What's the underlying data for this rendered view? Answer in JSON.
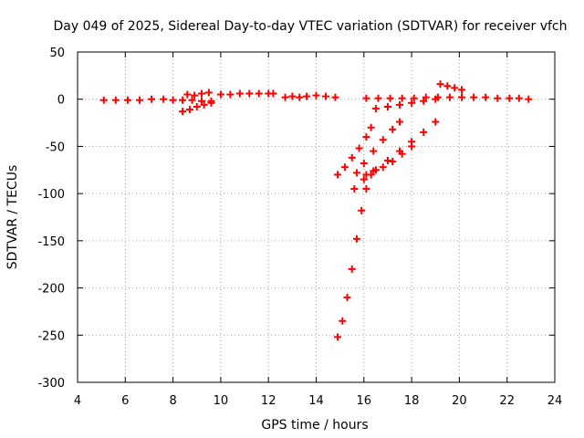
{
  "chart_data": {
    "type": "scatter",
    "title": "Day 049 of 2025, Sidereal Day-to-day VTEC variation (SDTVAR) for receiver vfch",
    "xlabel": "GPS time / hours",
    "ylabel": "SDTVAR / TECUs",
    "xlim": [
      4,
      24
    ],
    "ylim": [
      -300,
      50
    ],
    "xticks": [
      4,
      6,
      8,
      10,
      12,
      14,
      16,
      18,
      20,
      22,
      24
    ],
    "yticks": [
      50,
      0,
      -50,
      -100,
      -150,
      -200,
      -250,
      -300
    ],
    "grid": true,
    "marker": "plus",
    "color": "#ff0000",
    "series": [
      {
        "x": [
          5.1,
          5.6,
          6.1,
          6.6,
          7.1,
          7.6,
          8.0,
          8.4,
          8.8,
          9.2,
          9.6
        ],
        "y": [
          -1,
          -1,
          -1,
          -1,
          0,
          0,
          -1,
          -1,
          -1,
          -2,
          -2
        ]
      },
      {
        "x": [
          8.4,
          8.7,
          9.0,
          9.3,
          9.6
        ],
        "y": [
          -13,
          -11,
          -8,
          -6,
          -4
        ]
      },
      {
        "x": [
          8.6,
          8.9,
          9.2,
          9.5
        ],
        "y": [
          5,
          4,
          6,
          7
        ]
      },
      {
        "x": [
          10.0,
          10.4,
          10.8,
          11.2,
          11.6,
          12.0,
          12.2
        ],
        "y": [
          5,
          5,
          6,
          6,
          6,
          6,
          6
        ]
      },
      {
        "x": [
          12.7,
          13.0,
          13.3,
          13.6,
          14.0,
          14.4,
          14.8
        ],
        "y": [
          2,
          3,
          2,
          3,
          4,
          3,
          2
        ]
      },
      {
        "x": [
          16.1,
          16.6,
          17.1,
          17.6,
          18.1,
          18.6,
          19.1,
          19.6,
          20.1,
          20.6,
          21.1,
          21.6,
          22.1,
          22.5,
          22.9
        ],
        "y": [
          1,
          1,
          1,
          1,
          1,
          2,
          2,
          2,
          2,
          2,
          2,
          1,
          1,
          1,
          0
        ]
      },
      {
        "x": [
          16.5,
          17.0,
          17.5,
          18.0,
          18.5,
          19.0
        ],
        "y": [
          -10,
          -8,
          -6,
          -4,
          -2,
          0
        ]
      },
      {
        "x": [
          19.2,
          19.5,
          19.8,
          20.1
        ],
        "y": [
          16,
          14,
          12,
          10
        ]
      },
      {
        "x": [
          14.9,
          15.1,
          15.3,
          15.5,
          15.7,
          15.9,
          16.1,
          16.3
        ],
        "y": [
          -252,
          -235,
          -210,
          -180,
          -148,
          -118,
          -95,
          -80
        ]
      },
      {
        "x": [
          14.9,
          15.2,
          15.5,
          15.8,
          16.1,
          16.3
        ],
        "y": [
          -80,
          -72,
          -62,
          -52,
          -40,
          -30
        ]
      },
      {
        "x": [
          15.7,
          16.0,
          16.4,
          16.8,
          17.2,
          17.5
        ],
        "y": [
          -78,
          -68,
          -55,
          -43,
          -32,
          -24
        ]
      },
      {
        "x": [
          15.6,
          16.0,
          16.5,
          17.0,
          17.5,
          18.0,
          18.5,
          19.0
        ],
        "y": [
          -95,
          -85,
          -75,
          -65,
          -55,
          -45,
          -35,
          -24
        ]
      },
      {
        "x": [
          16.1,
          16.4,
          16.8,
          17.2,
          17.6,
          18.0
        ],
        "y": [
          -80,
          -76,
          -72,
          -66,
          -58,
          -50
        ]
      }
    ]
  }
}
